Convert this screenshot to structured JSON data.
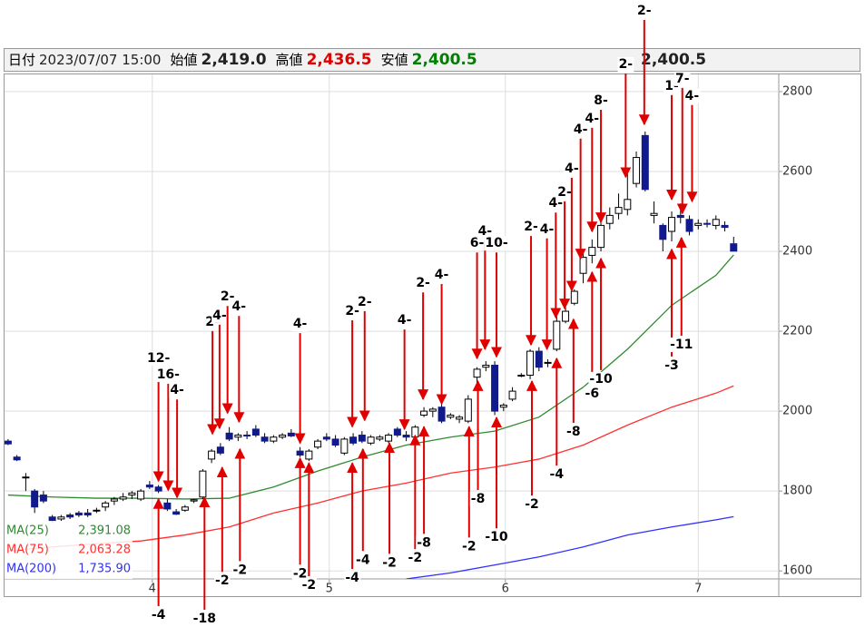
{
  "header": {
    "items": [
      {
        "label": "日付",
        "value": "2023/07/07 15:00",
        "color": "#222222"
      },
      {
        "label": "始値",
        "value": "2,419.0",
        "color": "#222222"
      },
      {
        "label": "高値",
        "value": "2,436.5",
        "color": "#e00000"
      },
      {
        "label": "安値",
        "value": "2,400.5",
        "color": "#008000"
      }
    ],
    "right_value": "2,400.5"
  },
  "chart_data": {
    "type": "candlestick",
    "up_color": "#ffffff",
    "down_color": "#101a8c",
    "edge_color": "#000000",
    "xlim": [
      -0.4,
      87.1
    ],
    "ylim": [
      1580,
      2843
    ],
    "xticks": [
      {
        "value": 16.3,
        "label": "4"
      },
      {
        "value": 36.3,
        "label": "5"
      },
      {
        "value": 56.2,
        "label": "6"
      },
      {
        "value": 78,
        "label": "7"
      }
    ],
    "yticks": [
      1600,
      1800,
      2000,
      2200,
      2400,
      2600,
      2800
    ],
    "grid": true,
    "x": [
      0,
      1,
      2,
      3,
      4,
      5,
      6,
      7,
      8,
      9,
      10,
      11,
      12,
      13,
      14,
      15,
      16,
      17,
      18,
      19,
      20,
      21,
      22,
      23,
      24,
      25,
      26,
      27,
      28,
      29,
      30,
      31,
      32,
      33,
      34,
      35,
      36,
      37,
      38,
      39,
      40,
      41,
      42,
      43,
      44,
      45,
      46,
      47,
      48,
      49,
      50,
      51,
      52,
      53,
      54,
      55,
      56,
      57,
      58,
      59,
      60,
      61,
      62,
      63,
      64,
      65,
      66,
      67,
      68,
      69,
      70,
      71,
      72,
      73,
      74,
      75,
      76,
      77,
      78,
      79,
      80,
      81,
      82
    ],
    "open": [
      1925,
      1885,
      1835,
      1800,
      1790,
      1735,
      1730,
      1740,
      1745,
      1745,
      1750,
      1760,
      1775,
      1780,
      1790,
      1780,
      1815,
      1810,
      1770,
      1748,
      1752,
      1775,
      1785,
      1880,
      1910,
      1945,
      1935,
      1940,
      1955,
      1935,
      1925,
      1935,
      1945,
      1900,
      1880,
      1910,
      1935,
      1930,
      1895,
      1935,
      1940,
      1920,
      1930,
      1925,
      1955,
      1940,
      1935,
      1990,
      2000,
      2010,
      1985,
      1980,
      1975,
      2085,
      2110,
      2115,
      2010,
      2030,
      2090,
      2090,
      2150,
      2120,
      2155,
      2225,
      2270,
      2345,
      2390,
      2410,
      2470,
      2495,
      2505,
      2570,
      2690,
      2490,
      2465,
      2450,
      2490,
      2480,
      2465,
      2470,
      2465,
      2465,
      2419
    ],
    "high": [
      1930,
      1890,
      1845,
      1805,
      1800,
      1740,
      1740,
      1745,
      1750,
      1755,
      1758,
      1775,
      1785,
      1795,
      1800,
      1805,
      1825,
      1815,
      1780,
      1755,
      1765,
      1780,
      1855,
      1905,
      1920,
      1960,
      1945,
      1950,
      1965,
      1945,
      1940,
      1945,
      1955,
      1910,
      1905,
      1930,
      1945,
      1940,
      1935,
      1945,
      1950,
      1940,
      1940,
      1945,
      1960,
      1950,
      1965,
      2010,
      2010,
      2030,
      1995,
      1990,
      2040,
      2110,
      2125,
      2125,
      2020,
      2060,
      2095,
      2155,
      2160,
      2130,
      2240,
      2265,
      2305,
      2395,
      2430,
      2480,
      2510,
      2545,
      2600,
      2650,
      2700,
      2525,
      2470,
      2500,
      2520,
      2490,
      2480,
      2480,
      2490,
      2475,
      2436.5
    ],
    "low": [
      1915,
      1875,
      1800,
      1745,
      1770,
      1720,
      1725,
      1730,
      1735,
      1735,
      1745,
      1750,
      1765,
      1775,
      1780,
      1775,
      1805,
      1795,
      1750,
      1740,
      1748,
      1770,
      1780,
      1870,
      1890,
      1925,
      1925,
      1930,
      1935,
      1920,
      1920,
      1930,
      1935,
      1885,
      1875,
      1905,
      1925,
      1910,
      1890,
      1915,
      1920,
      1915,
      1925,
      1920,
      1935,
      1925,
      1930,
      1985,
      1985,
      1970,
      1980,
      1970,
      1970,
      2070,
      2100,
      1990,
      2000,
      2025,
      2085,
      2080,
      2100,
      2110,
      2150,
      2220,
      2265,
      2320,
      2370,
      2400,
      2455,
      2480,
      2490,
      2560,
      2550,
      2470,
      2400,
      2425,
      2470,
      2440,
      2455,
      2460,
      2455,
      2450,
      2400.5
    ],
    "close": [
      1918,
      1878,
      1835,
      1760,
      1775,
      1725,
      1735,
      1735,
      1740,
      1740,
      1752,
      1770,
      1780,
      1785,
      1795,
      1800,
      1810,
      1800,
      1755,
      1742,
      1760,
      1778,
      1850,
      1900,
      1895,
      1930,
      1940,
      1938,
      1940,
      1925,
      1935,
      1940,
      1938,
      1890,
      1900,
      1925,
      1930,
      1915,
      1930,
      1920,
      1925,
      1935,
      1935,
      1940,
      1940,
      1935,
      1960,
      2000,
      2005,
      1975,
      1990,
      1985,
      2030,
      2105,
      2115,
      2000,
      2015,
      2050,
      2090,
      2150,
      2110,
      2122,
      2225,
      2250,
      2300,
      2385,
      2410,
      2465,
      2490,
      2510,
      2530,
      2635,
      2555,
      2495,
      2430,
      2485,
      2485,
      2450,
      2470,
      2468,
      2480,
      2460,
      2400.5
    ],
    "series": [
      {
        "name": "MA(25)",
        "color": "#2e8b2e",
        "legend_value": {
          "value": 2391.08,
          "label": "2,391.08"
        },
        "x": [
          0,
          5,
          10,
          15,
          20,
          25,
          30,
          35,
          40,
          45,
          50,
          55,
          60,
          65,
          70,
          75,
          80,
          82
        ],
        "values": [
          1790,
          1785,
          1782,
          1782,
          1780,
          1782,
          1810,
          1850,
          1885,
          1915,
          1935,
          1950,
          1985,
          2060,
          2155,
          2265,
          2340,
          2391.08
        ]
      },
      {
        "name": "MA(75)",
        "color": "#ff3030",
        "legend_value": {
          "value": 2063.28,
          "label": "2,063.28"
        },
        "x": [
          0,
          5,
          10,
          15,
          20,
          25,
          30,
          35,
          40,
          45,
          50,
          55,
          60,
          65,
          70,
          75,
          80,
          82
        ],
        "values": [
          1650,
          1660,
          1668,
          1675,
          1690,
          1710,
          1745,
          1770,
          1800,
          1820,
          1845,
          1860,
          1880,
          1915,
          1965,
          2010,
          2045,
          2063.28
        ]
      },
      {
        "name": "MA(200)",
        "color": "#3030ff",
        "legend_value": {
          "value": 1735.9,
          "label": "1,735.90"
        },
        "x": [
          45,
          50,
          55,
          60,
          65,
          70,
          75,
          80,
          82
        ],
        "values": [
          1580,
          1595,
          1615,
          1635,
          1660,
          1690,
          1710,
          1728,
          1735.9
        ]
      }
    ],
    "annotations": [
      {
        "text": "12-",
        "x": 17.0,
        "y": 1825,
        "label_y": 2132
      },
      {
        "text": "16-",
        "x": 18.1,
        "y": 1802,
        "label_y": 2091
      },
      {
        "text": "4-",
        "x": 19.1,
        "y": 1784,
        "label_y": 2052
      },
      {
        "text": "2-",
        "x": 23.1,
        "y": 1943,
        "label_y": 2223
      },
      {
        "text": "4-",
        "x": 23.9,
        "y": 1957,
        "label_y": 2239
      },
      {
        "text": "2-",
        "x": 24.8,
        "y": 1995,
        "label_y": 2286
      },
      {
        "text": "4-",
        "x": 26.1,
        "y": 1973,
        "label_y": 2261
      },
      {
        "text": "4-",
        "x": 33.0,
        "y": 1920,
        "label_y": 2218
      },
      {
        "text": "2-",
        "x": 38.9,
        "y": 1961,
        "label_y": 2250
      },
      {
        "text": "2-",
        "x": 40.3,
        "y": 1977,
        "label_y": 2273
      },
      {
        "text": "4-",
        "x": 44.8,
        "y": 1955,
        "label_y": 2227
      },
      {
        "text": "2-",
        "x": 46.9,
        "y": 2030,
        "label_y": 2320
      },
      {
        "text": "4-",
        "x": 49.0,
        "y": 2018,
        "label_y": 2341
      },
      {
        "text": "6-",
        "x": 53.0,
        "y": 2132,
        "label_y": 2420
      },
      {
        "text": "4-",
        "x": 53.9,
        "y": 2155,
        "label_y": 2450
      },
      {
        "text": "10-",
        "x": 55.2,
        "y": 2136,
        "label_y": 2420
      },
      {
        "text": "2-",
        "x": 59.1,
        "y": 2166,
        "label_y": 2461
      },
      {
        "text": "4-",
        "x": 60.9,
        "y": 2155,
        "label_y": 2455
      },
      {
        "text": "4-",
        "x": 61.9,
        "y": 2234,
        "label_y": 2520
      },
      {
        "text": "2-",
        "x": 62.9,
        "y": 2257,
        "label_y": 2548
      },
      {
        "text": "4-",
        "x": 63.7,
        "y": 2302,
        "label_y": 2607
      },
      {
        "text": "4-",
        "x": 64.7,
        "y": 2382,
        "label_y": 2705
      },
      {
        "text": "4-",
        "x": 66.0,
        "y": 2450,
        "label_y": 2732
      },
      {
        "text": "8-",
        "x": 67.0,
        "y": 2473,
        "label_y": 2777
      },
      {
        "text": "2-",
        "x": 69.8,
        "y": 2586,
        "label_y": 2868
      },
      {
        "text": "2-",
        "x": 71.9,
        "y": 2718,
        "label_y": 3002
      },
      {
        "text": "1-",
        "x": 75.0,
        "y": 2530,
        "label_y": 2814
      },
      {
        "text": "7-",
        "x": 76.2,
        "y": 2495,
        "label_y": 2832
      },
      {
        "text": "4-",
        "x": 77.3,
        "y": 2525,
        "label_y": 2789
      },
      {
        "text": "-4",
        "x": 17.0,
        "y": 1780,
        "label_y": 1489
      },
      {
        "text": "-18",
        "x": 22.2,
        "y": 1784,
        "label_y": 1480
      },
      {
        "text": "-2",
        "x": 24.2,
        "y": 1859,
        "label_y": 1575
      },
      {
        "text": "-2",
        "x": 26.2,
        "y": 1905,
        "label_y": 1602
      },
      {
        "text": "-2",
        "x": 33.0,
        "y": 1882,
        "label_y": 1593
      },
      {
        "text": "-2",
        "x": 34.0,
        "y": 1870,
        "label_y": 1564
      },
      {
        "text": "-4",
        "x": 38.9,
        "y": 1870,
        "label_y": 1582
      },
      {
        "text": "-4",
        "x": 40.1,
        "y": 1905,
        "label_y": 1627
      },
      {
        "text": "-2",
        "x": 43.1,
        "y": 1920,
        "label_y": 1620
      },
      {
        "text": "-2",
        "x": 46.0,
        "y": 1939,
        "label_y": 1632
      },
      {
        "text": "-8",
        "x": 47.0,
        "y": 1961,
        "label_y": 1670
      },
      {
        "text": "-2",
        "x": 52.1,
        "y": 1961,
        "label_y": 1661
      },
      {
        "text": "-8",
        "x": 53.1,
        "y": 2075,
        "label_y": 1780
      },
      {
        "text": "-10",
        "x": 55.2,
        "y": 1984,
        "label_y": 1684
      },
      {
        "text": "-2",
        "x": 59.2,
        "y": 2075,
        "label_y": 1766
      },
      {
        "text": "-4",
        "x": 62.0,
        "y": 2132,
        "label_y": 1841
      },
      {
        "text": "-8",
        "x": 63.9,
        "y": 2230,
        "label_y": 1948
      },
      {
        "text": "-6",
        "x": 66.0,
        "y": 2348,
        "label_y": 2043
      },
      {
        "text": "-10",
        "x": 67.0,
        "y": 2382,
        "label_y": 2080
      },
      {
        "text": "-3",
        "x": 75.0,
        "y": 2405,
        "label_y": 2114
      },
      {
        "text": "-11",
        "x": 76.1,
        "y": 2434,
        "label_y": 2166
      }
    ]
  }
}
